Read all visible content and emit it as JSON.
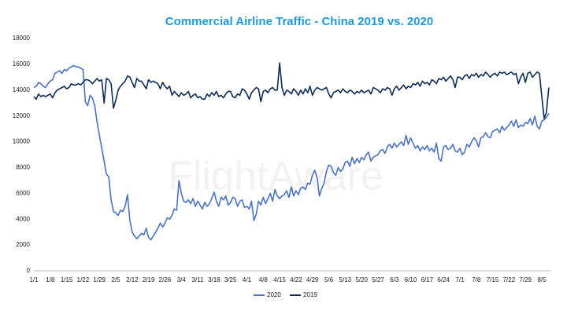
{
  "chart_data": {
    "type": "line",
    "title": "Commercial Airline Traffic - China 2019 vs. 2020",
    "watermark": "FlightAware",
    "categories": [
      "1/1",
      null,
      null,
      null,
      null,
      null,
      null,
      "1/8",
      null,
      null,
      null,
      null,
      null,
      null,
      "1/15",
      null,
      null,
      null,
      null,
      null,
      null,
      "1/22",
      null,
      null,
      null,
      null,
      null,
      null,
      "1/29",
      null,
      null,
      null,
      null,
      null,
      null,
      "2/5",
      null,
      null,
      null,
      null,
      null,
      null,
      "2/12",
      null,
      null,
      null,
      null,
      null,
      null,
      "2/19",
      null,
      null,
      null,
      null,
      null,
      null,
      "2/26",
      null,
      null,
      null,
      null,
      null,
      null,
      "3/4",
      null,
      null,
      null,
      null,
      null,
      null,
      "3/11",
      null,
      null,
      null,
      null,
      null,
      null,
      "3/18",
      null,
      null,
      null,
      null,
      null,
      null,
      "3/25",
      null,
      null,
      null,
      null,
      null,
      null,
      "4/1",
      null,
      null,
      null,
      null,
      null,
      null,
      "4/8",
      null,
      null,
      null,
      null,
      null,
      null,
      "4/15",
      null,
      null,
      null,
      null,
      null,
      null,
      "4/22",
      null,
      null,
      null,
      null,
      null,
      null,
      "4/29",
      null,
      null,
      null,
      null,
      null,
      null,
      "5/6",
      null,
      null,
      null,
      null,
      null,
      null,
      "5/13",
      null,
      null,
      null,
      null,
      null,
      null,
      "5/20",
      null,
      null,
      null,
      null,
      null,
      null,
      "5/27",
      null,
      null,
      null,
      null,
      null,
      null,
      "6/3",
      null,
      null,
      null,
      null,
      null,
      null,
      "6/10",
      null,
      null,
      null,
      null,
      null,
      null,
      "6/17",
      null,
      null,
      null,
      null,
      null,
      null,
      "6/24",
      null,
      null,
      null,
      null,
      null,
      null,
      "7/1",
      null,
      null,
      null,
      null,
      null,
      null,
      "7/8",
      null,
      null,
      null,
      null,
      null,
      null,
      "7/15",
      null,
      null,
      null,
      null,
      null,
      null,
      "7/22",
      null,
      null,
      null,
      null,
      null,
      null,
      "7/29",
      null,
      null,
      null,
      null,
      null,
      null,
      "8/5",
      null,
      null,
      null
    ],
    "series": [
      {
        "name": "2020",
        "color": "#4a72c2",
        "values": [
          14200,
          14300,
          14600,
          14500,
          14300,
          14200,
          14500,
          14700,
          14800,
          15300,
          15400,
          15500,
          15300,
          15600,
          15500,
          15700,
          15800,
          15900,
          15800,
          15800,
          15700,
          15600,
          13100,
          12800,
          13600,
          13400,
          12800,
          11500,
          10500,
          9500,
          8500,
          7500,
          7300,
          5500,
          4600,
          4500,
          4300,
          4700,
          4600,
          5000,
          5900,
          3900,
          3000,
          2700,
          2500,
          2700,
          2900,
          2800,
          3300,
          2600,
          2400,
          2700,
          3000,
          3300,
          3700,
          3400,
          3700,
          4100,
          4000,
          4300,
          4800,
          4700,
          7000,
          6000,
          5400,
          5300,
          5500,
          5200,
          5600,
          5000,
          5400,
          5100,
          4800,
          5300,
          5000,
          5200,
          5600,
          6100,
          5400,
          5000,
          5700,
          5500,
          5800,
          5100,
          5300,
          5700,
          5600,
          5000,
          5400,
          5500,
          4900,
          5000,
          4800,
          5400,
          3900,
          4400,
          5400,
          5100,
          5700,
          5200,
          5600,
          6000,
          5400,
          6300,
          5800,
          5600,
          5800,
          5900,
          6200,
          5700,
          6500,
          5800,
          6200,
          5900,
          6400,
          6500,
          6300,
          6800,
          6700,
          7400,
          7800,
          7200,
          5800,
          6400,
          6800,
          7700,
          8200,
          8100,
          7600,
          7400,
          8000,
          7700,
          7900,
          8400,
          8500,
          8100,
          8800,
          8300,
          8700,
          8400,
          8800,
          8600,
          9000,
          9200,
          8500,
          8800,
          8900,
          9000,
          9300,
          9400,
          9100,
          9600,
          9800,
          9500,
          9900,
          9600,
          9800,
          10000,
          9700,
          10500,
          9800,
          10300,
          9900,
          9500,
          9700,
          9300,
          9600,
          9400,
          9700,
          9300,
          9500,
          9200,
          9900,
          8700,
          8500,
          9600,
          9700,
          9400,
          9500,
          9800,
          9300,
          9200,
          9500,
          9000,
          9200,
          9800,
          9600,
          10000,
          10300,
          10100,
          9600,
          10300,
          10400,
          10700,
          10400,
          10300,
          10800,
          10900,
          11000,
          10700,
          11200,
          10900,
          11100,
          11300,
          11600,
          11200,
          11700,
          11100,
          11300,
          11200,
          11500,
          11400,
          11800,
          11300,
          12000,
          11200,
          11000,
          11600,
          11700,
          11900,
          12200
        ]
      },
      {
        "name": "2019",
        "color": "#0d2c57",
        "values": [
          13500,
          13300,
          13700,
          13500,
          13600,
          13500,
          13600,
          13700,
          13400,
          13800,
          14000,
          14100,
          14200,
          14300,
          14100,
          14200,
          14500,
          14400,
          14400,
          14500,
          14400,
          14600,
          14800,
          14800,
          14700,
          14500,
          14700,
          14900,
          14700,
          14800,
          13000,
          14900,
          14800,
          14500,
          12600,
          13200,
          14000,
          14300,
          14500,
          14700,
          15100,
          15000,
          14600,
          14200,
          14900,
          14700,
          14700,
          14400,
          14100,
          14800,
          14600,
          14700,
          14600,
          14500,
          14100,
          14600,
          14300,
          14100,
          14300,
          13600,
          13900,
          13700,
          13500,
          13800,
          13600,
          13700,
          13900,
          13400,
          13600,
          13700,
          13400,
          13500,
          13300,
          13300,
          13700,
          13500,
          13800,
          13600,
          13900,
          13500,
          13600,
          13400,
          13700,
          13900,
          13900,
          13500,
          13400,
          13700,
          13600,
          14100,
          14000,
          13700,
          13300,
          13800,
          14000,
          14200,
          14100,
          13100,
          13900,
          14000,
          13800,
          14100,
          14200,
          14000,
          14000,
          16100,
          14200,
          13600,
          14000,
          13900,
          13700,
          14100,
          13900,
          13600,
          14000,
          13700,
          14100,
          13800,
          14300,
          13600,
          14000,
          14200,
          14100,
          14000,
          14100,
          14200,
          13700,
          13400,
          13800,
          13900,
          14000,
          13800,
          14100,
          13900,
          13800,
          14000,
          13900,
          13700,
          13900,
          13800,
          14000,
          13800,
          13900,
          14000,
          13700,
          14200,
          14100,
          14000,
          13800,
          14100,
          14000,
          14200,
          14100,
          13600,
          14100,
          14300,
          14000,
          14200,
          14400,
          14100,
          14300,
          14200,
          14500,
          14400,
          14600,
          14300,
          14700,
          14500,
          14600,
          14400,
          14800,
          14700,
          14500,
          14900,
          14800,
          15000,
          14700,
          14900,
          15100,
          14800,
          14200,
          15000,
          15000,
          14800,
          15100,
          15200,
          14900,
          15200,
          15100,
          15300,
          15000,
          15200,
          15100,
          15400,
          15200,
          15000,
          15200,
          15300,
          15100,
          15400,
          15300,
          15400,
          15200,
          15300,
          15400,
          15200,
          15300,
          14500,
          15000,
          15300,
          14600,
          15300,
          15400,
          15000,
          15200,
          15400,
          15300,
          13500,
          11800,
          12300,
          14200
        ]
      }
    ],
    "ylim": [
      0,
      18000
    ],
    "yticks": [
      0,
      2000,
      4000,
      6000,
      8000,
      10000,
      12000,
      14000,
      16000,
      18000
    ],
    "grid": false,
    "legend": "bottom"
  }
}
